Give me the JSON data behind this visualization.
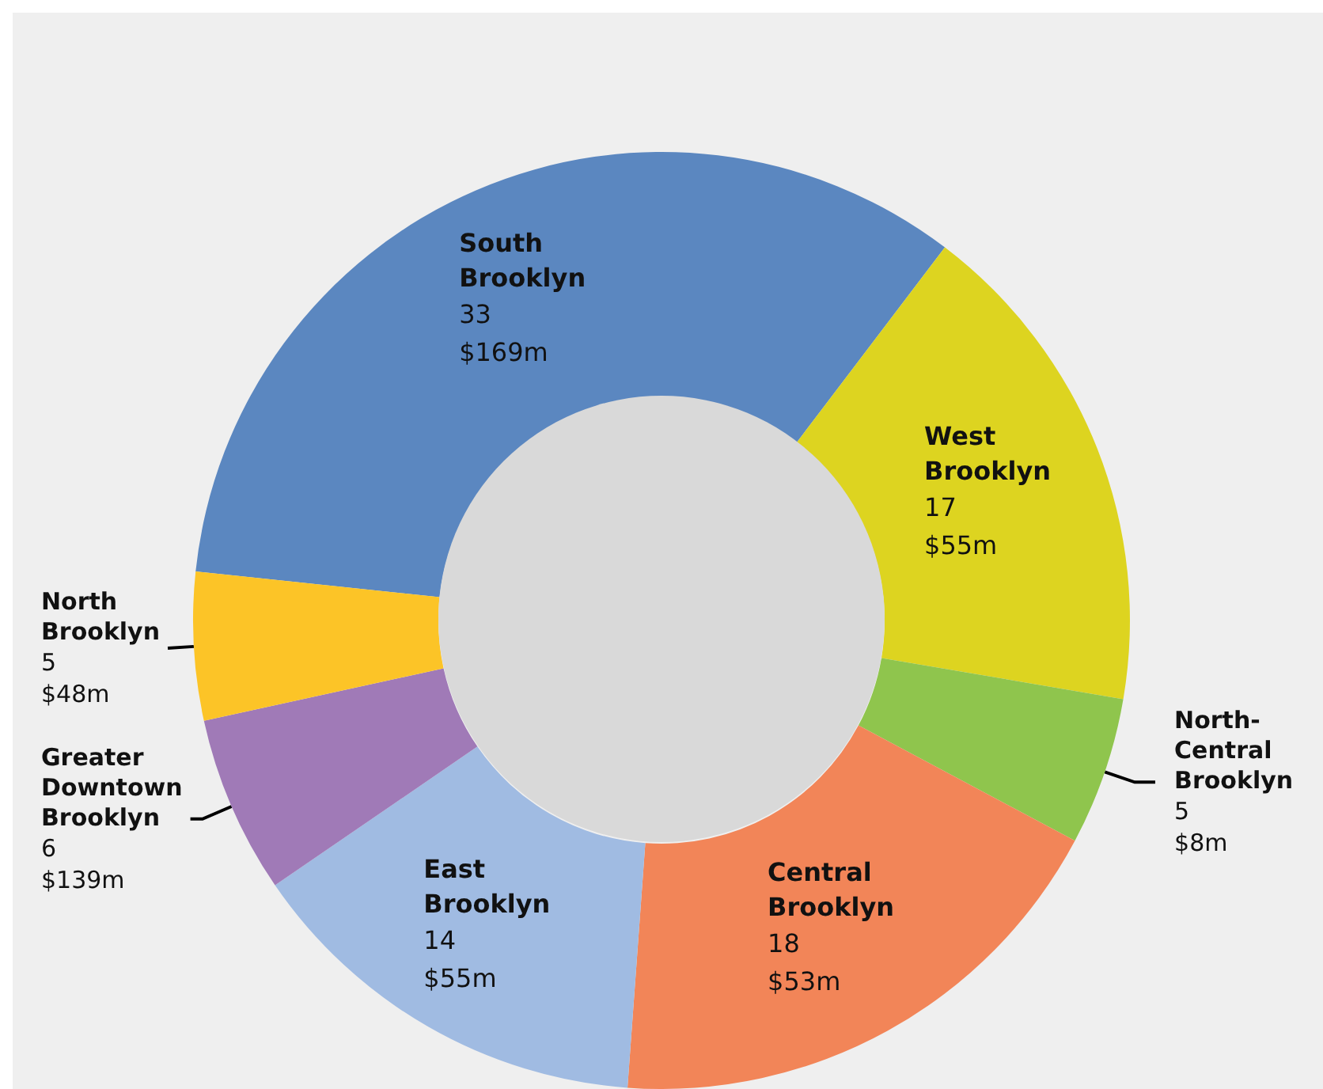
{
  "chart_data": {
    "type": "donut",
    "categories": [
      "South Brooklyn",
      "West Brooklyn",
      "North-Central Brooklyn",
      "Central Brooklyn",
      "East Brooklyn",
      "Greater Downtown Brooklyn",
      "North Brooklyn"
    ],
    "values": [
      33,
      17,
      5,
      18,
      14,
      6,
      5
    ],
    "value_labels": [
      "33\n$169m",
      "17\n$55m",
      "5\n$8m",
      "18\n$53m",
      "14\n$55m",
      "6\n$139m",
      "5\n$48m"
    ],
    "colors": [
      "#5b87c0",
      "#ddd420",
      "#8fc54d",
      "#f28558",
      "#a0bbe2",
      "#a07ab7",
      "#fcc427"
    ],
    "legend": false
  }
}
